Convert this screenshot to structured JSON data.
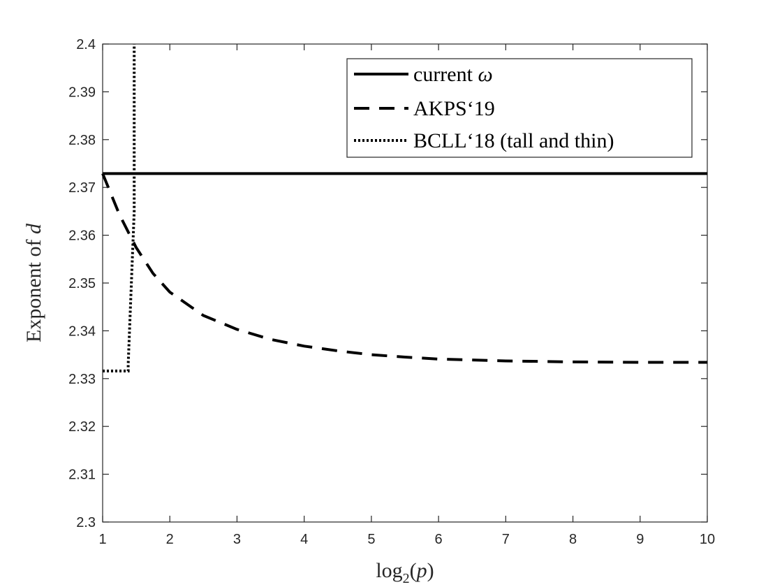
{
  "chart_data": {
    "type": "line",
    "title": "",
    "xlabel": {
      "prefix": "log",
      "subscript": "2",
      "suffix": "(p)"
    },
    "ylabel": {
      "prefix": "Exponent of ",
      "var": "d"
    },
    "xlim": [
      1,
      10
    ],
    "ylim": [
      2.3,
      2.4
    ],
    "xticks": [
      1,
      2,
      3,
      4,
      5,
      6,
      7,
      8,
      9,
      10
    ],
    "xtick_labels": [
      "1",
      "2",
      "3",
      "4",
      "5",
      "6",
      "7",
      "8",
      "9",
      "10"
    ],
    "yticks": [
      2.3,
      2.31,
      2.32,
      2.33,
      2.34,
      2.35,
      2.36,
      2.37,
      2.38,
      2.39,
      2.4
    ],
    "ytick_labels": [
      "2.3",
      "2.31",
      "2.32",
      "2.33",
      "2.34",
      "2.35",
      "2.36",
      "2.37",
      "2.38",
      "2.39",
      "2.4"
    ],
    "grid": false,
    "legend_position": "top-right",
    "series": [
      {
        "name": "current ω",
        "label_prefix": "current ",
        "label_symbol": "ω",
        "style": "solid",
        "color": "#000000",
        "x": [
          1,
          10
        ],
        "y": [
          2.3729,
          2.3729
        ]
      },
      {
        "name": "AKPS‘19",
        "label_prefix": "AKPS‘19",
        "label_symbol": "",
        "style": "dashed",
        "color": "#000000",
        "x": [
          1,
          1.25,
          1.5,
          1.75,
          2,
          2.5,
          3,
          3.5,
          4,
          4.5,
          5,
          5.5,
          6,
          7,
          8,
          9,
          10
        ],
        "y": [
          2.3729,
          2.3643,
          2.3574,
          2.352,
          2.3481,
          2.3432,
          2.3403,
          2.3382,
          2.3368,
          2.3358,
          2.335,
          2.3345,
          2.3341,
          2.3337,
          2.3335,
          2.3334,
          2.3334
        ]
      },
      {
        "name": "BCLL‘18 (tall and thin)",
        "label_prefix": "BCLL‘18 (tall and thin)",
        "label_symbol": "",
        "style": "dotted",
        "color": "#000000",
        "x": [
          1,
          1.38,
          1.38,
          1.47,
          1.47
        ],
        "y": [
          2.3316,
          2.3316,
          2.333,
          2.365,
          2.4
        ]
      }
    ]
  }
}
